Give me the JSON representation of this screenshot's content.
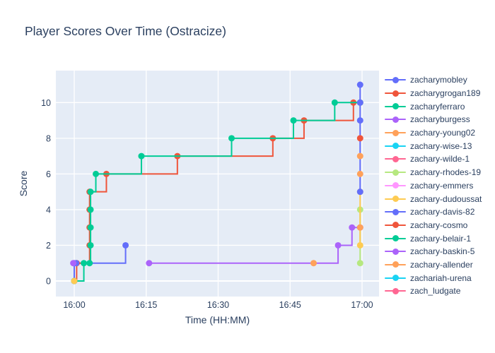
{
  "chart_data": {
    "type": "line",
    "title": "Player Scores Over Time (Ostracize)",
    "xlabel": "Time (HH:MM)",
    "ylabel": "Score",
    "line_shape": "hv",
    "grid": true,
    "legend_position": "right",
    "plot_bgcolor": "#E5ECF6",
    "grid_color": "#FFFFFF",
    "text_color": "#2a3f5f",
    "x_ticks": [
      {
        "minutes": 0,
        "label": "16:00"
      },
      {
        "minutes": 15,
        "label": "16:15"
      },
      {
        "minutes": 30,
        "label": "16:30"
      },
      {
        "minutes": 45,
        "label": "16:45"
      },
      {
        "minutes": 60,
        "label": "17:00"
      }
    ],
    "y_ticks": [
      0,
      2,
      4,
      6,
      8,
      10
    ],
    "x_range_minutes": [
      -3.8,
      63.5
    ],
    "ylim": [
      -0.87,
      11.8
    ],
    "x_units": "minutes after 16:00",
    "series": [
      {
        "name": "zacharymobley",
        "color": "#636EFA",
        "segments": [
          [
            [
              0,
              0
            ],
            [
              0,
              1
            ],
            [
              10.7,
              2
            ]
          ]
        ]
      },
      {
        "name": "zacharygrogan189",
        "color": "#EF553B",
        "segments": [
          [
            [
              0,
              0
            ],
            [
              0.5,
              1
            ],
            [
              3.2,
              2
            ],
            [
              3.2,
              3
            ],
            [
              3.2,
              4
            ],
            [
              3.2,
              5
            ],
            [
              6.7,
              6
            ],
            [
              21.5,
              7
            ],
            [
              41.4,
              8
            ],
            [
              47.9,
              9
            ],
            [
              58.2,
              10
            ],
            [
              59.6,
              10
            ]
          ]
        ]
      },
      {
        "name": "zacharyferraro",
        "color": "#00CC96",
        "segments": [
          [
            [
              0,
              0
            ],
            [
              2,
              1
            ],
            [
              3.2,
              1
            ],
            [
              3.4,
              2
            ],
            [
              3.4,
              3
            ],
            [
              3.4,
              4
            ],
            [
              3.4,
              5
            ],
            [
              4.5,
              6
            ],
            [
              14,
              7
            ],
            [
              32.8,
              8
            ],
            [
              45.7,
              9
            ],
            [
              54.3,
              10
            ],
            [
              59.6,
              10
            ]
          ]
        ]
      },
      {
        "name": "zacharyburgess",
        "color": "#AB63FA",
        "segments": [
          [
            [
              15.6,
              1
            ],
            [
              55,
              2
            ],
            [
              57.9,
              3
            ],
            [
              59.6,
              3
            ]
          ]
        ]
      },
      {
        "name": "zachary-young02",
        "color": "#FFA15A",
        "segments": [
          [
            [
              49.9,
              1
            ]
          ]
        ]
      },
      {
        "name": "zachary-wise-13",
        "color": "#19D3F3",
        "segments": []
      },
      {
        "name": "zachary-wilde-1",
        "color": "#FF6692",
        "segments": []
      },
      {
        "name": "zachary-rhodes-19",
        "color": "#B6E880",
        "segments": [
          [
            [
              59.6,
              1
            ],
            [
              59.6,
              4
            ]
          ]
        ]
      },
      {
        "name": "zachary-emmers",
        "color": "#FF97FF",
        "segments": []
      },
      {
        "name": "zachary-dudoussat",
        "color": "#FECB52",
        "segments": [
          [
            [
              0,
              0
            ]
          ],
          [
            [
              59.6,
              2
            ],
            [
              59.6,
              5
            ]
          ]
        ]
      },
      {
        "name": "zachary-davis-82",
        "color": "#636EFA",
        "segments": [
          [
            [
              0.4,
              1
            ]
          ],
          [
            [
              59.6,
              5
            ],
            [
              59.6,
              9
            ],
            [
              59.6,
              10
            ],
            [
              59.6,
              11
            ]
          ]
        ]
      },
      {
        "name": "zachary-cosmo",
        "color": "#EF553B",
        "segments": [
          [
            [
              59.6,
              8
            ]
          ]
        ]
      },
      {
        "name": "zachary-belair-1",
        "color": "#00CC96",
        "segments": []
      },
      {
        "name": "zachary-baskin-5",
        "color": "#AB63FA",
        "segments": [
          [
            [
              -0.2,
              1
            ]
          ]
        ]
      },
      {
        "name": "zachary-allender",
        "color": "#FFA15A",
        "segments": [
          [
            [
              59.6,
              3
            ]
          ],
          [
            [
              59.6,
              6
            ]
          ],
          [
            [
              59.6,
              7
            ]
          ]
        ]
      },
      {
        "name": "zachariah-urena",
        "color": "#19D3F3",
        "segments": []
      },
      {
        "name": "zach_ludgate",
        "color": "#FF6692",
        "segments": []
      }
    ]
  }
}
